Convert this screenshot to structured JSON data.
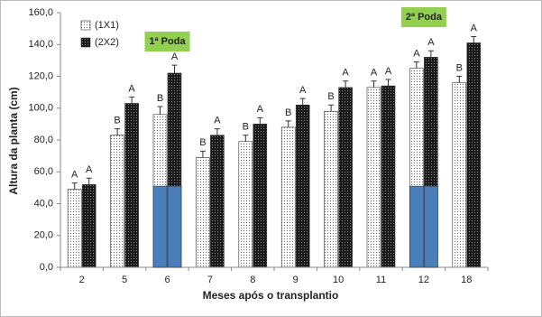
{
  "chart_data": {
    "type": "bar",
    "x_label": "Meses após o transplantio",
    "y_label": "Altura da planta (cm)",
    "categories": [
      "2",
      "5",
      "6",
      "7",
      "8",
      "9",
      "10",
      "11",
      "12",
      "18"
    ],
    "series": [
      {
        "name": "(1X1)",
        "color": "#ffffff",
        "pattern": "dots",
        "values": [
          49,
          83,
          96,
          69,
          79,
          88,
          98,
          113,
          125,
          116
        ],
        "errors": [
          4,
          4,
          5,
          4,
          4,
          4,
          4,
          4,
          4,
          4
        ],
        "letters": [
          "A",
          "B",
          "B",
          "B",
          "B",
          "B",
          "B",
          "A",
          "A",
          "B"
        ]
      },
      {
        "name": "(2X2)",
        "color": "#222222",
        "pattern": "crosshatch",
        "values": [
          52,
          103,
          122,
          83,
          90,
          102,
          113,
          114,
          132,
          141
        ],
        "errors": [
          4,
          4,
          5,
          4,
          4,
          4,
          4,
          4,
          4,
          4
        ],
        "letters": [
          "A",
          "A",
          "A",
          "A",
          "A",
          "A",
          "A",
          "A",
          "A",
          "A"
        ]
      }
    ],
    "prunings": [
      {
        "label": "1ª Poda",
        "category": "6",
        "value": 51,
        "color": "#4a7ebb",
        "label_color": "#92d050"
      },
      {
        "label": "2ª Poda",
        "category": "12",
        "value": 51,
        "color": "#4a7ebb",
        "label_color": "#92d050"
      }
    ],
    "ylim": [
      0,
      160
    ],
    "yticks": [
      {
        "value": 0,
        "label": "0,0"
      },
      {
        "value": 20,
        "label": "20,0"
      },
      {
        "value": 40,
        "label": "40,0"
      },
      {
        "value": 60,
        "label": "60,0"
      },
      {
        "value": 80,
        "label": "80,0"
      },
      {
        "value": 100,
        "label": "100,0"
      },
      {
        "value": 120,
        "label": "120,0"
      },
      {
        "value": 140,
        "label": "140,0"
      },
      {
        "value": 160,
        "label": "160,0"
      }
    ]
  }
}
